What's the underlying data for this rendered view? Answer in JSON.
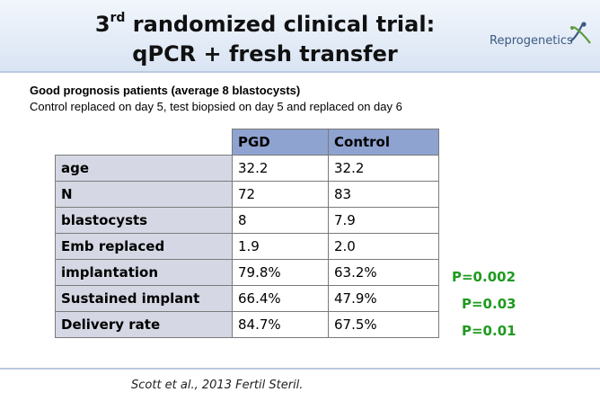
{
  "header": {
    "title_prefix": "3",
    "title_sup": "rd",
    "title_line1_rest": " randomized clinical trial:",
    "title_line2": "qPCR + fresh transfer",
    "logo_text": "Reprogenetics"
  },
  "intro": {
    "subtitle": "Good prognosis patients (average 8 blastocysts)",
    "description": "Control replaced on day 5, test biopsied on day 5 and replaced on day 6"
  },
  "table": {
    "columns": [
      "PGD",
      "Control"
    ],
    "rows": [
      {
        "label": "age",
        "pgd": "32.2",
        "control": "32.2"
      },
      {
        "label": "N",
        "pgd": "72",
        "control": "83"
      },
      {
        "label": "blastocysts",
        "pgd": "8",
        "control": "7.9"
      },
      {
        "label": "Emb replaced",
        "pgd": "1.9",
        "control": "2.0"
      },
      {
        "label": "implantation",
        "pgd": "79.8%",
        "control": "63.2%"
      },
      {
        "label": "Sustained implant",
        "pgd": "66.4%",
        "control": "47.9%"
      },
      {
        "label": "Delivery rate",
        "pgd": "84.7%",
        "control": "67.5%"
      }
    ]
  },
  "p_values": {
    "implantation": "P=0.002",
    "sustained": "P=0.03",
    "delivery": "P=0.01"
  },
  "colors": {
    "header_blue": "#8ea3cf",
    "label_gray": "#d5d8e4",
    "pvalue_green": "#1f9a1f"
  },
  "footer": {
    "citation": "Scott et al., 2013 Fertil Steril."
  }
}
